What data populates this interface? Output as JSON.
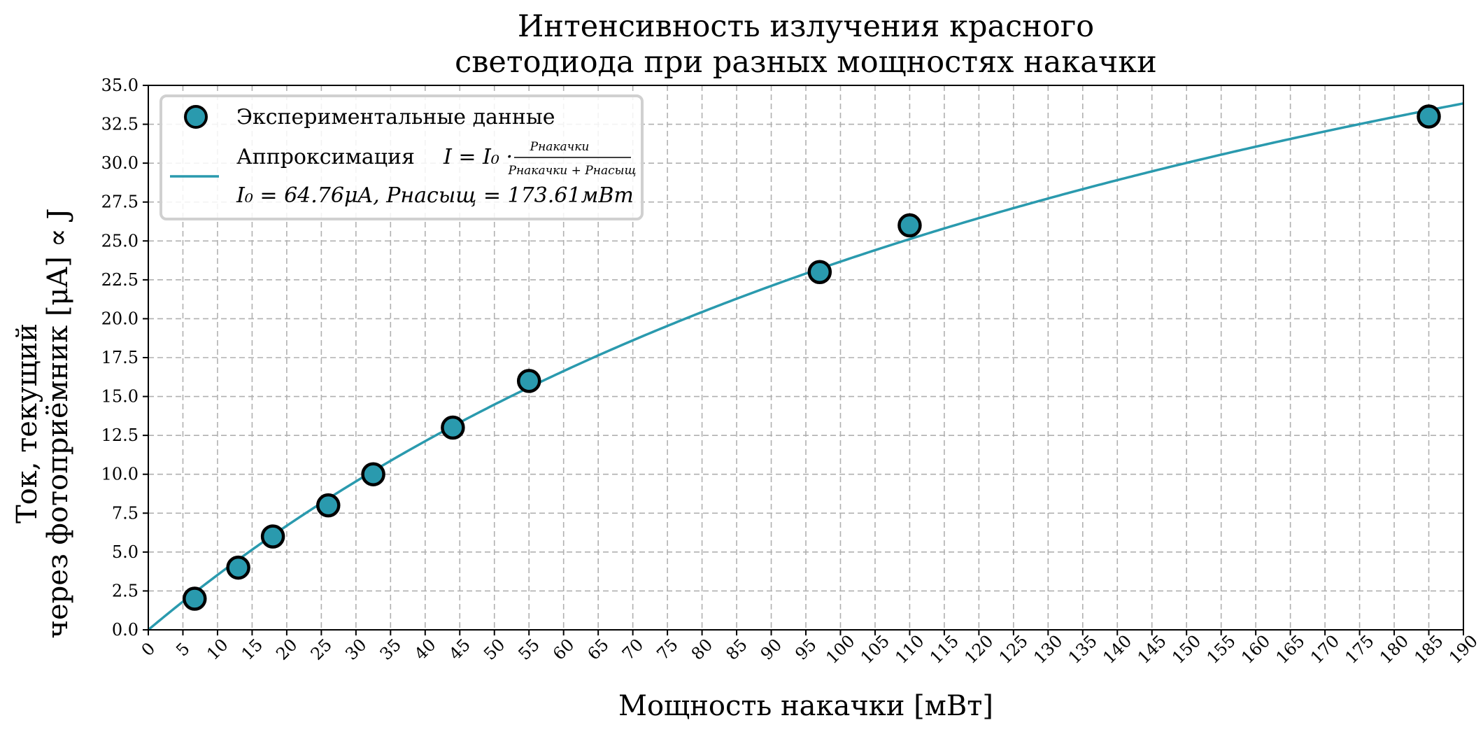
{
  "chart_data": {
    "type": "scatter",
    "title_lines": [
      "Интенсивность излучения красного",
      "светодиода при разных мощностях накачки"
    ],
    "xlabel": "Мощность накачки [мВт]",
    "ylabel_lines": [
      "Ток, текущий",
      "через фотоприёмник [μA] ∝ J"
    ],
    "xlim": [
      0,
      190
    ],
    "ylim": [
      0,
      35
    ],
    "x_ticks": [
      0,
      5,
      10,
      15,
      20,
      25,
      30,
      35,
      40,
      45,
      50,
      55,
      60,
      65,
      70,
      75,
      80,
      85,
      90,
      95,
      100,
      105,
      110,
      115,
      120,
      125,
      130,
      135,
      140,
      145,
      150,
      155,
      160,
      165,
      170,
      175,
      180,
      185,
      190
    ],
    "y_ticks": [
      0.0,
      2.5,
      5.0,
      7.5,
      10.0,
      12.5,
      15.0,
      17.5,
      20.0,
      22.5,
      25.0,
      27.5,
      30.0,
      32.5,
      35.0
    ],
    "grid": true,
    "legend_position": "top-left",
    "colors": {
      "points": "#2a9aae",
      "fit": "#2a9aae",
      "edge": "#000000"
    },
    "series": [
      {
        "name": "Экспериментальные данные",
        "kind": "scatter",
        "points": [
          [
            6.7,
            2
          ],
          [
            13,
            4
          ],
          [
            18,
            6
          ],
          [
            26,
            8
          ],
          [
            32.5,
            10
          ],
          [
            44,
            13
          ],
          [
            55,
            16
          ],
          [
            97,
            23
          ],
          [
            110,
            26
          ],
          [
            185,
            33
          ]
        ]
      },
      {
        "name": "Аппроксимация",
        "kind": "fit-line",
        "I0": 64.76,
        "Psat": 173.61
      }
    ],
    "legend": {
      "scatter_label": "Экспериментальные данные",
      "fit_label": "Аппроксимация",
      "fit_formula_lhs": "I = I₀ ·",
      "fit_numerator": "Pнакачки",
      "fit_denominator": "Pнакачки + Pнасыщ",
      "fit_params": "I₀ = 64.76μA, Pнасыщ = 173.61мВт"
    }
  }
}
